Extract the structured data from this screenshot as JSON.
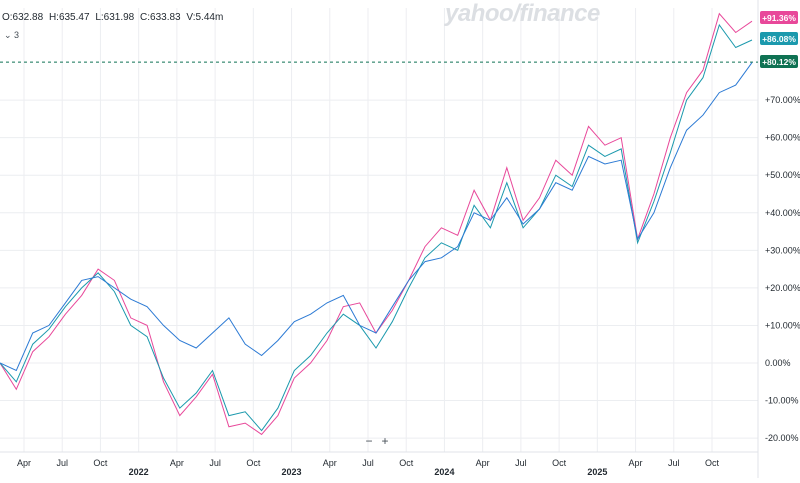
{
  "header": {
    "open": "O:632.88",
    "high": "H:635.47",
    "low": "L:631.98",
    "close": "C:633.83",
    "volume": "V:5.44m",
    "compare_toggle": "⌄ 3"
  },
  "watermark": "yahoo/finance",
  "zoom": {
    "minus": "−",
    "plus": "+"
  },
  "chart_data": {
    "type": "line",
    "ylabel": "",
    "xlabel": "",
    "ylim": [
      -22,
      100
    ],
    "y_ticks": [
      {
        "v": 70,
        "label": "+70.00%"
      },
      {
        "v": 60,
        "label": "+60.00%"
      },
      {
        "v": 50,
        "label": "+50.00%"
      },
      {
        "v": 40,
        "label": "+40.00%"
      },
      {
        "v": 30,
        "label": "+30.00%"
      },
      {
        "v": 20,
        "label": "+20.00%"
      },
      {
        "v": 10,
        "label": "+10.00%"
      },
      {
        "v": 0,
        "label": "0.00%"
      },
      {
        "v": -10,
        "label": "-10.00%"
      },
      {
        "v": -20,
        "label": "-20.00%"
      }
    ],
    "x_ticks": [
      {
        "label": "Apr",
        "major": false
      },
      {
        "label": "Jul",
        "major": false
      },
      {
        "label": "Oct",
        "major": false
      },
      {
        "label": "2022",
        "major": true
      },
      {
        "label": "Apr",
        "major": false
      },
      {
        "label": "Jul",
        "major": false
      },
      {
        "label": "Oct",
        "major": false
      },
      {
        "label": "2023",
        "major": true
      },
      {
        "label": "Apr",
        "major": false
      },
      {
        "label": "Jul",
        "major": false
      },
      {
        "label": "Oct",
        "major": false
      },
      {
        "label": "2024",
        "major": true
      },
      {
        "label": "Apr",
        "major": false
      },
      {
        "label": "Jul",
        "major": false
      },
      {
        "label": "Oct",
        "major": false
      },
      {
        "label": "2025",
        "major": true
      },
      {
        "label": "Apr",
        "major": false
      },
      {
        "label": "Jul",
        "major": false
      },
      {
        "label": "Oct",
        "major": false
      }
    ],
    "current_price_line": 80.12,
    "series": [
      {
        "color": "#e8489a",
        "end_label": "+91.36%",
        "label_color": "#e8489a",
        "values": [
          0,
          -7,
          3,
          7,
          13,
          18,
          25,
          22,
          12,
          10,
          -5,
          -14,
          -9,
          -3,
          -17,
          -16,
          -19,
          -14,
          -4,
          0,
          6,
          15,
          16,
          8,
          14,
          22,
          31,
          36,
          34,
          46,
          38,
          52,
          38,
          44,
          54,
          50,
          63,
          58,
          60,
          33,
          45,
          60,
          72,
          78,
          93,
          88,
          91
        ]
      },
      {
        "color": "#1b99ad",
        "end_label": "+86.08%",
        "label_color": "#1b99ad",
        "values": [
          0,
          -5,
          5,
          9,
          15,
          20,
          24,
          19,
          10,
          7,
          -4,
          -12,
          -8,
          -2,
          -14,
          -13,
          -18,
          -12,
          -2,
          2,
          8,
          13,
          10,
          4,
          11,
          20,
          28,
          32,
          30,
          42,
          36,
          48,
          36,
          41,
          50,
          47,
          58,
          55,
          57,
          32,
          43,
          56,
          70,
          76,
          90,
          84,
          86
        ]
      },
      {
        "color": "#2c7ad4",
        "end_label": "+80.12%",
        "label_color": "#0f7253",
        "values": [
          0,
          -2,
          8,
          10,
          16,
          22,
          23,
          20,
          17,
          15,
          10,
          6,
          4,
          8,
          12,
          5,
          2,
          6,
          11,
          13,
          16,
          18,
          10,
          8,
          15,
          22,
          27,
          28,
          31,
          40,
          38,
          44,
          37,
          41,
          48,
          46,
          55,
          53,
          54,
          33,
          40,
          52,
          62,
          66,
          72,
          74,
          80
        ]
      }
    ]
  }
}
